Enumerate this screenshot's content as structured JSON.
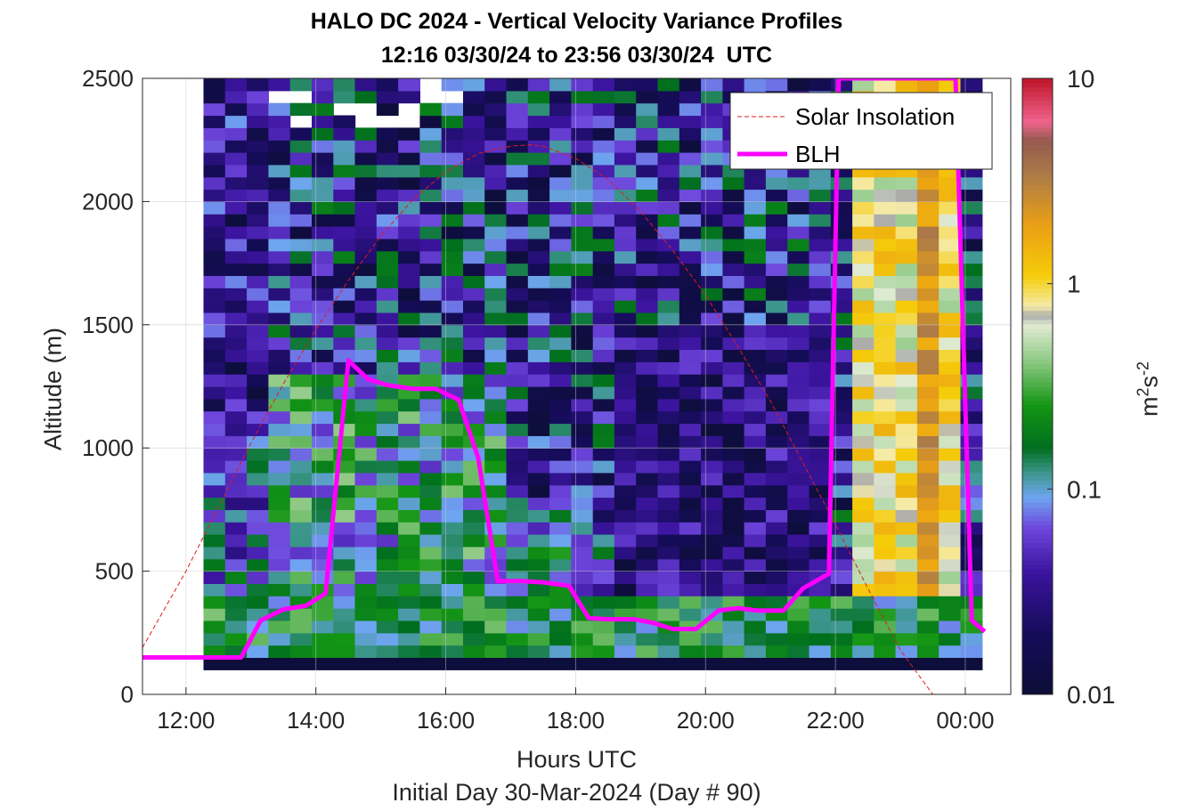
{
  "figure": {
    "title_line1": "HALO DC 2024 - Vertical Velocity Variance Profiles",
    "title_line2": "12:16 03/30/24 to 23:56 03/30/24  UTC",
    "xlabel_line1": "Hours UTC",
    "xlabel_line2": "Initial Day 30-Mar-2024 (Day # 90)",
    "ylabel": "Altitude (m)",
    "colorbar_label_base": "m",
    "colorbar_label_sup1": "2",
    "colorbar_label_mid": "s",
    "colorbar_label_sup2": "-2"
  },
  "chart_data": {
    "type": "heatmap",
    "title": "HALO DC 2024 - Vertical Velocity Variance Profiles",
    "subtitle": "12:16 03/30/24 to 23:56 03/30/24  UTC",
    "xlabel": "Hours UTC",
    "ylabel": "Altitude (m)",
    "xlim": [
      11.33,
      24.7
    ],
    "ylim": [
      0,
      2500
    ],
    "x_ticks": [
      12,
      14,
      16,
      18,
      20,
      22,
      24
    ],
    "x_tick_labels": [
      "12:00",
      "14:00",
      "16:00",
      "18:00",
      "20:00",
      "22:00",
      "00:00"
    ],
    "y_ticks": [
      0,
      500,
      1000,
      1500,
      2000,
      2500
    ],
    "y_tick_labels": [
      "0",
      "500",
      "1000",
      "1500",
      "2000",
      "2500"
    ],
    "grid": true,
    "legend_position": "top-right",
    "colorbar": {
      "scale": "log",
      "range": [
        0.01,
        10
      ],
      "ticks": [
        0.01,
        0.1,
        1,
        10
      ],
      "tick_labels": [
        "0.01",
        "0.1",
        "1",
        "10"
      ]
    },
    "heatmap_grid": {
      "x_start": 12.27,
      "x_step": 0.333,
      "x_count": 36,
      "y_start": 100,
      "y_step": 50,
      "y_count": 48,
      "units": "m2 s-2"
    },
    "series": [
      {
        "name": "Solar Insolation",
        "color": "#e31a1c",
        "style": "dashed",
        "x": [
          11.33,
          12,
          12.5,
          13,
          13.5,
          14,
          14.5,
          15,
          15.5,
          16,
          16.5,
          17,
          17.3,
          17.5,
          18,
          18.5,
          19,
          19.5,
          20,
          20.5,
          21,
          21.5,
          22,
          22.5,
          23,
          23.5,
          23.8,
          24,
          24.6
        ],
        "y": [
          190,
          500,
          760,
          1020,
          1260,
          1480,
          1680,
          1860,
          2010,
          2120,
          2195,
          2225,
          2230,
          2225,
          2175,
          2090,
          1960,
          1800,
          1620,
          1410,
          1190,
          940,
          690,
          430,
          180,
          0,
          0,
          0,
          0
        ]
      },
      {
        "name": "BLH",
        "color": "#ff00ff",
        "style": "solid",
        "x": [
          11.33,
          12.85,
          13.15,
          13.5,
          13.85,
          14.15,
          14.5,
          14.8,
          15.1,
          15.5,
          15.85,
          16.2,
          16.5,
          16.8,
          17.15,
          17.5,
          17.9,
          18.2,
          18.5,
          18.9,
          19.2,
          19.5,
          19.85,
          20.2,
          20.5,
          20.8,
          21.2,
          21.5,
          21.9,
          22.05,
          22.2,
          22.3,
          23.7,
          23.85,
          24.1,
          24.3
        ],
        "y": [
          150,
          150,
          300,
          345,
          360,
          410,
          1355,
          1280,
          1255,
          1240,
          1240,
          1195,
          960,
          460,
          460,
          455,
          440,
          310,
          305,
          305,
          290,
          265,
          265,
          340,
          350,
          340,
          340,
          430,
          490,
          2500,
          2500,
          2500,
          2500,
          2500,
          300,
          255
        ]
      }
    ]
  }
}
